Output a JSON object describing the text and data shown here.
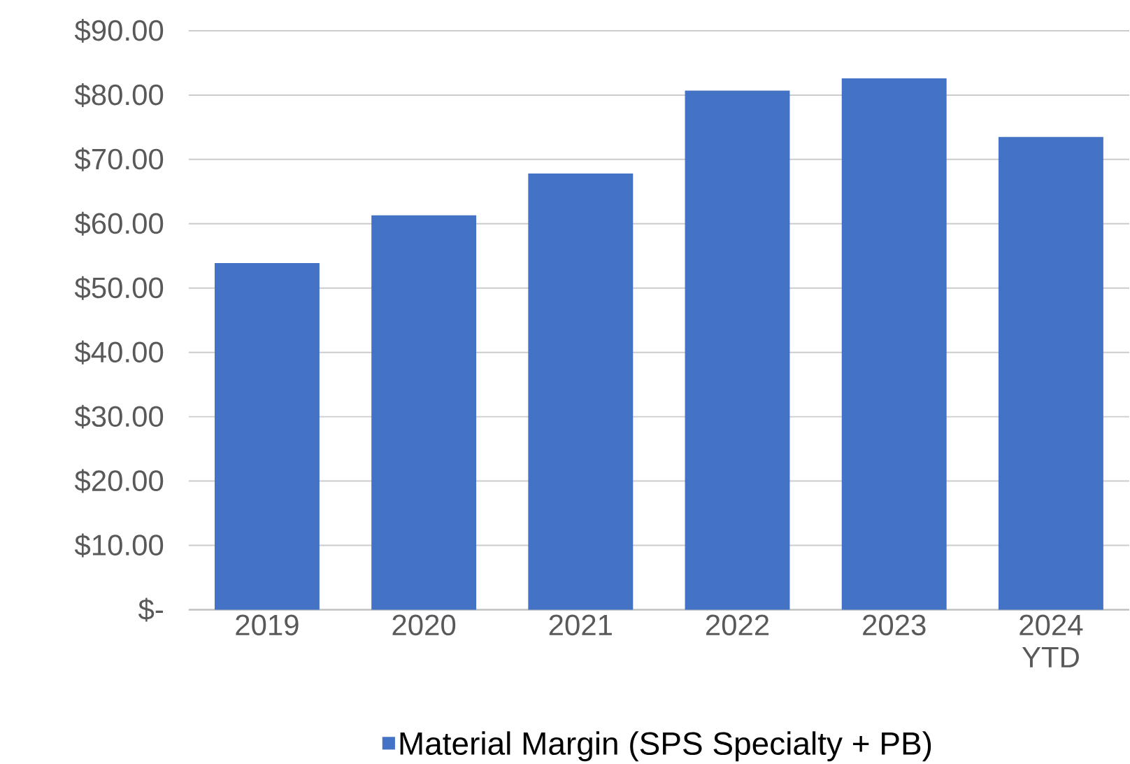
{
  "chart_data": {
    "type": "bar",
    "categories": [
      "2019",
      "2020",
      "2021",
      "2022",
      "2023",
      "2024 YTD"
    ],
    "series": [
      {
        "name": "Material Margin (SPS Specialty + PB)",
        "color": "#4472c4",
        "values": [
          53.9,
          61.3,
          67.8,
          80.7,
          82.6,
          73.5
        ]
      }
    ],
    "ylim": [
      0,
      90
    ],
    "yticks": [
      {
        "value": 0,
        "label": "$-"
      },
      {
        "value": 10,
        "label": "$10.00"
      },
      {
        "value": 20,
        "label": "$20.00"
      },
      {
        "value": 30,
        "label": "$30.00"
      },
      {
        "value": 40,
        "label": "$40.00"
      },
      {
        "value": 50,
        "label": "$50.00"
      },
      {
        "value": 60,
        "label": "$60.00"
      },
      {
        "value": 70,
        "label": "$70.00"
      },
      {
        "value": 80,
        "label": "$80.00"
      },
      {
        "value": 90,
        "label": "$90.00"
      }
    ],
    "grid": "y",
    "legend": "bottom"
  }
}
